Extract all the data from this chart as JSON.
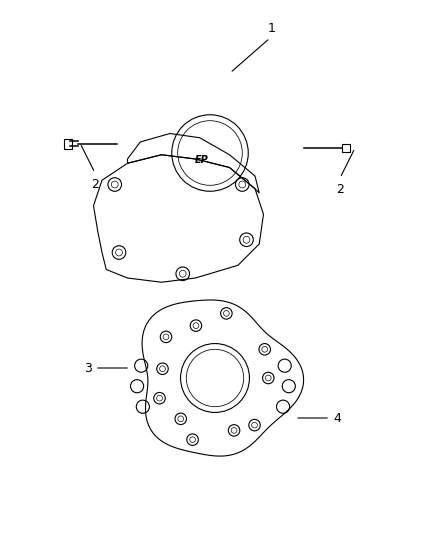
{
  "background_color": "#ffffff",
  "title": "",
  "fig_width": 4.38,
  "fig_height": 5.33,
  "dpi": 100,
  "label_1": "1",
  "label_2_left": "2",
  "label_2_right": "2",
  "label_3": "3",
  "label_4": "4",
  "label_fontsize": 9,
  "line_color": "#000000",
  "drawing_color": "#333333",
  "ep_text": "EP"
}
